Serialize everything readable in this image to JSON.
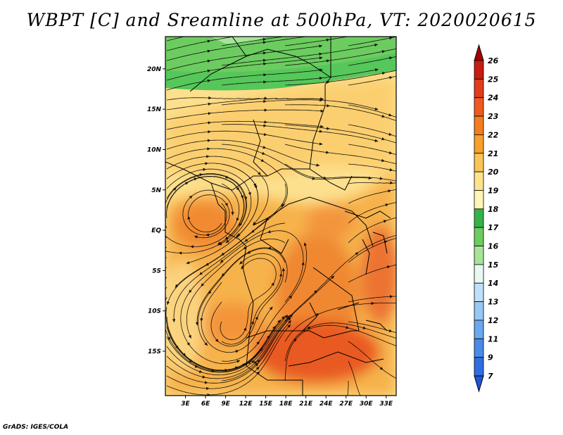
{
  "title": "WBPT [C] and Sreamline at 500hPa, VT: 2020020615",
  "footer": "GrADS: IGES/COLA",
  "map": {
    "lat_labels": [
      "20N",
      "15N",
      "10N",
      "5N",
      "EQ",
      "5S",
      "10S",
      "15S"
    ],
    "lon_labels": [
      "3E",
      "6E",
      "9E",
      "12E",
      "15E",
      "18E",
      "21E",
      "24E",
      "27E",
      "30E",
      "33E"
    ],
    "extent": {
      "lon": [
        0,
        34.5
      ],
      "lat": [
        -20.5,
        24
      ]
    }
  },
  "colorbar": {
    "labels": [
      "26",
      "25",
      "24",
      "23",
      "22",
      "21",
      "20",
      "19",
      "18",
      "17",
      "16",
      "15",
      "14",
      "13",
      "12",
      "11",
      "9",
      "7"
    ],
    "colors": [
      "#a50000",
      "#c81d0f",
      "#e23c1e",
      "#f05a1e",
      "#f47d1e",
      "#f8a02c",
      "#fac558",
      "#fde38c",
      "#fff5b8",
      "#36b24a",
      "#6ccc60",
      "#a6e49a",
      "#e8f9f4",
      "#bfe0fa",
      "#96c8f5",
      "#6aa8ee",
      "#4b8ae6",
      "#2f6ee0",
      "#1f56d6"
    ]
  },
  "colors": {
    "north_band": "#56c75a",
    "warm": "#f5a23a",
    "hot": "#ea5a22",
    "mild": "#fde08e"
  }
}
